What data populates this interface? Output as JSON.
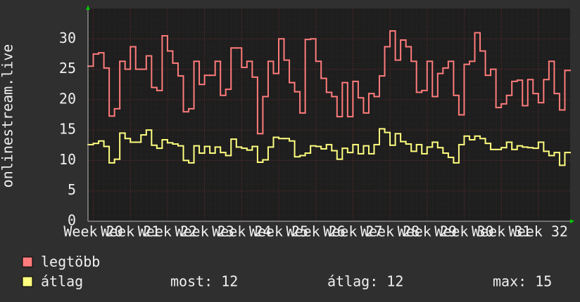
{
  "chart_data": {
    "type": "step",
    "y_label": "onlinestream.live",
    "x": [
      0,
      1,
      2,
      3,
      4,
      5,
      6,
      7,
      8,
      9,
      10,
      11,
      12,
      13,
      14,
      15,
      16,
      17,
      18,
      19,
      20,
      21,
      22,
      23,
      24,
      25,
      26,
      27,
      28,
      29,
      30,
      31,
      32,
      33,
      34,
      35,
      36,
      37,
      38,
      39,
      40,
      41,
      42,
      43,
      44,
      45,
      46,
      47,
      48,
      49,
      50,
      51,
      52,
      53,
      54,
      55,
      56,
      57,
      58,
      59,
      60,
      61,
      62,
      63,
      64,
      65,
      66,
      67,
      68,
      69,
      70,
      71,
      72,
      73,
      74,
      75,
      76,
      77,
      78,
      79,
      80,
      81,
      82,
      83,
      84,
      85,
      86,
      87,
      88,
      89,
      90
    ],
    "series": [
      {
        "name": "legtöbb",
        "color": "#ff7b7b",
        "values": [
          25.5,
          27.5,
          27.7,
          25.2,
          17.3,
          18.5,
          26.3,
          25,
          28.7,
          25,
          25,
          27.2,
          22,
          21.5,
          30.5,
          28,
          26,
          23.9,
          18,
          18.5,
          26.3,
          22.5,
          24,
          24,
          26.3,
          20.7,
          21.7,
          28.5,
          28.5,
          25.3,
          26.3,
          23.7,
          14.4,
          20.5,
          26.3,
          24.3,
          30,
          26.5,
          22.8,
          21.3,
          17.8,
          29.9,
          30,
          26.3,
          23.5,
          21.2,
          20.5,
          17.2,
          22.8,
          17.2,
          23,
          20.3,
          17.8,
          21,
          20.5,
          23.9,
          28.7,
          31.3,
          26.5,
          29.8,
          28.7,
          26.3,
          21.2,
          21.5,
          26.3,
          20.5,
          24.3,
          25.2,
          26.3,
          20.7,
          17.5,
          25.8,
          26.3,
          31,
          28,
          24,
          25,
          18.7,
          19.3,
          20.7,
          23,
          23.2,
          19,
          23.3,
          21,
          19.5,
          23.3,
          26.3,
          21,
          18.3,
          24.8
        ]
      },
      {
        "name": "átlag",
        "color": "#ffff80",
        "values": [
          12.6,
          12.8,
          13.2,
          12.3,
          9.6,
          10.2,
          14.5,
          13.6,
          13,
          13,
          14.2,
          15,
          12.5,
          12,
          13.4,
          12.9,
          12.7,
          12.4,
          10,
          9.6,
          12.4,
          11.2,
          12.3,
          11.2,
          12.2,
          11.3,
          10.8,
          13.5,
          12.2,
          12,
          11.7,
          12.3,
          9.7,
          10.1,
          12.2,
          13.8,
          13.6,
          13.6,
          13.2,
          10.6,
          10.8,
          11.2,
          12.4,
          12.3,
          11.9,
          12.6,
          11.6,
          10.2,
          12,
          11.3,
          12.6,
          11.1,
          12.4,
          11.1,
          12.6,
          15.2,
          14.6,
          12.5,
          14.4,
          13.1,
          12.7,
          11.5,
          12.6,
          11.1,
          12.2,
          13,
          12.1,
          11.2,
          10.5,
          9.6,
          12.6,
          14,
          13.4,
          14,
          13.6,
          12.8,
          11.8,
          11.8,
          12.1,
          13,
          11.8,
          12.4,
          12.2,
          12.1,
          12,
          13,
          11.5,
          10.8,
          11.3,
          9.2,
          11.3
        ]
      }
    ],
    "xlim": [
      0,
      91
    ],
    "xticks": [
      {
        "value": 1,
        "label": "Week 20"
      },
      {
        "value": 8,
        "label": "Week 21"
      },
      {
        "value": 15,
        "label": "Week 22"
      },
      {
        "value": 22,
        "label": "Week 23"
      },
      {
        "value": 29,
        "label": "Week 24"
      },
      {
        "value": 36,
        "label": "Week 25"
      },
      {
        "value": 43,
        "label": "Week 26"
      },
      {
        "value": 50,
        "label": "Week 27"
      },
      {
        "value": 57,
        "label": "Week 28"
      },
      {
        "value": 64,
        "label": "Week 29"
      },
      {
        "value": 71,
        "label": "Week 30"
      },
      {
        "value": 78,
        "label": "Week 31"
      },
      {
        "value": 85,
        "label": "Week 32"
      }
    ],
    "ylim": [
      0,
      35
    ],
    "yticks": [
      0,
      5,
      10,
      15,
      20,
      25,
      30
    ],
    "grid": true,
    "stats": [
      "most: 12",
      "átlag: 12",
      "max: 15"
    ]
  }
}
